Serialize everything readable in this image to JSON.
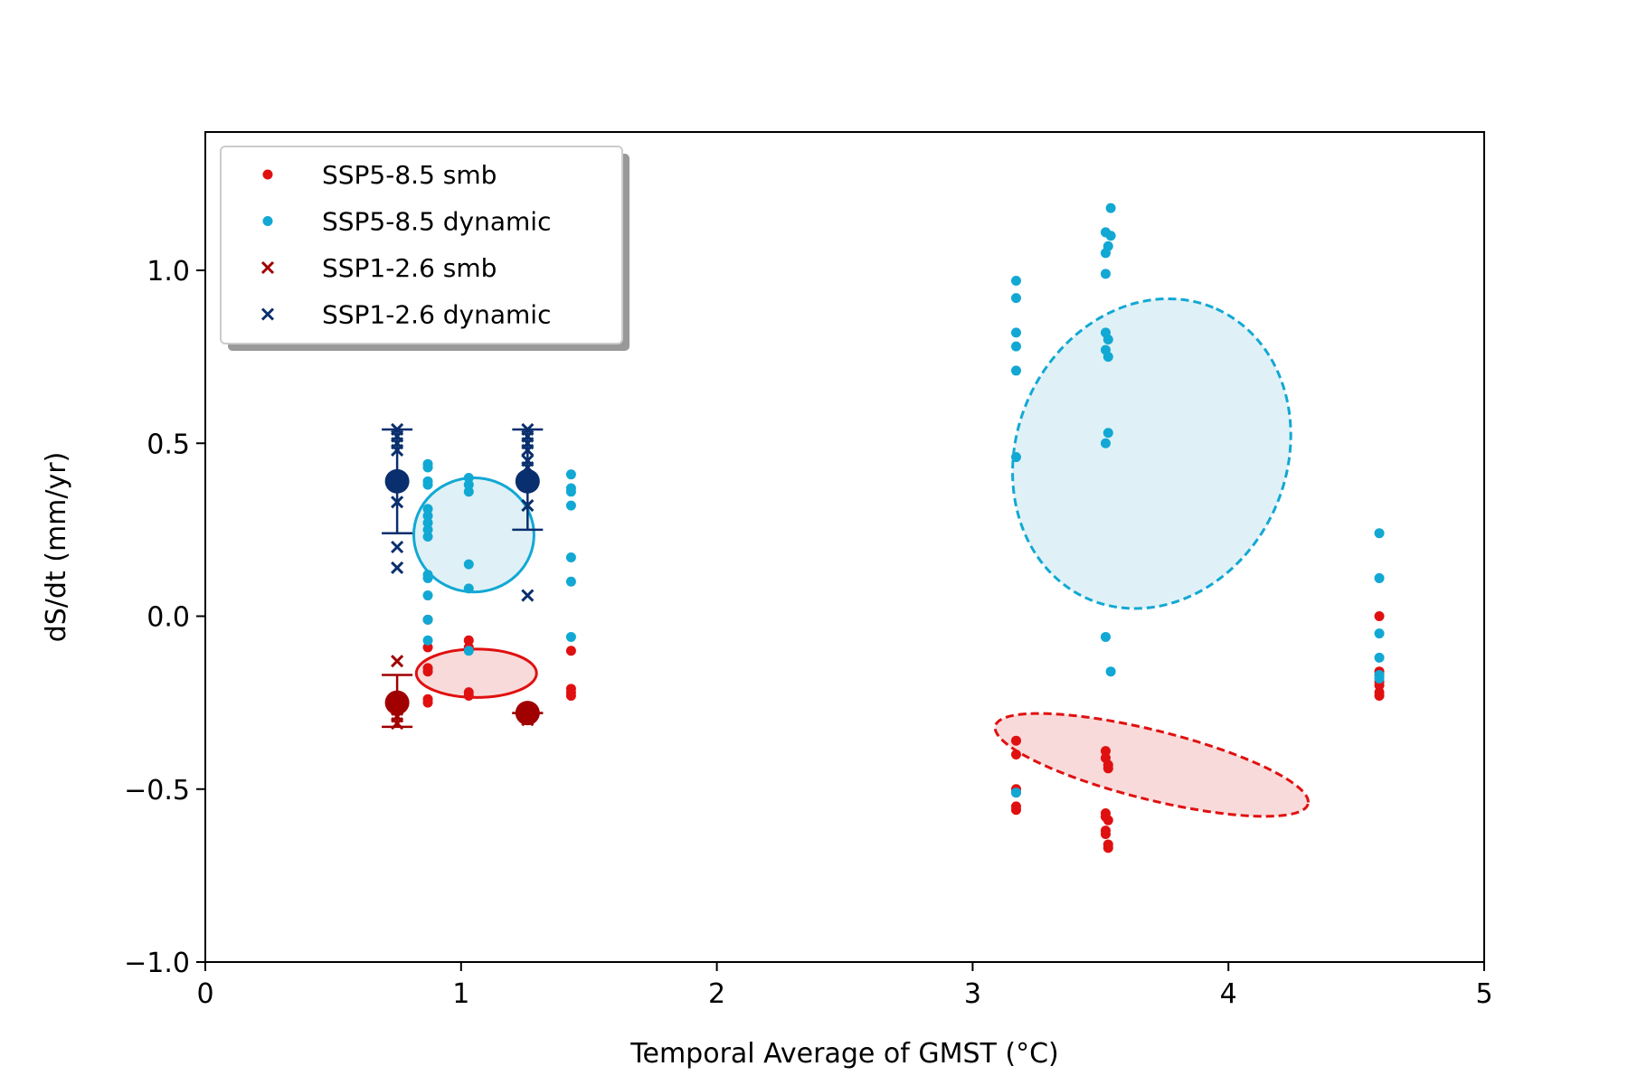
{
  "chart_data": {
    "type": "scatter",
    "title": "",
    "xlabel": "Temporal Average of GMST (°C)",
    "ylabel": "dS/dt (mm/yr)",
    "xlim": [
      0,
      5
    ],
    "ylim": [
      -1.0,
      1.4
    ],
    "xticks": [
      0,
      1,
      2,
      3,
      4,
      5
    ],
    "xtick_labels": [
      "0",
      "1",
      "2",
      "3",
      "4",
      "5"
    ],
    "yticks": [
      -1.0,
      -0.5,
      0.0,
      0.5,
      1.0
    ],
    "ytick_labels": [
      "−1.0",
      "−0.5",
      "0.0",
      "0.5",
      "1.0"
    ],
    "grid": false,
    "legend_position": "top-left",
    "series": [
      {
        "name": "SSP5-8.5 smb",
        "marker": "dot",
        "color": "#e01010",
        "points": [
          [
            0.87,
            -0.01
          ],
          [
            0.87,
            -0.09
          ],
          [
            0.87,
            -0.15
          ],
          [
            0.87,
            -0.16
          ],
          [
            0.87,
            -0.24
          ],
          [
            0.87,
            -0.25
          ],
          [
            1.03,
            -0.07
          ],
          [
            1.03,
            -0.09
          ],
          [
            1.03,
            -0.22
          ],
          [
            1.03,
            -0.23
          ],
          [
            1.43,
            -0.1
          ],
          [
            1.43,
            -0.21
          ],
          [
            1.43,
            -0.22
          ],
          [
            1.43,
            -0.23
          ],
          [
            3.17,
            -0.36
          ],
          [
            3.17,
            -0.4
          ],
          [
            3.17,
            -0.5
          ],
          [
            3.17,
            -0.51
          ],
          [
            3.17,
            -0.55
          ],
          [
            3.17,
            -0.56
          ],
          [
            3.52,
            -0.39
          ],
          [
            3.52,
            -0.41
          ],
          [
            3.53,
            -0.43
          ],
          [
            3.53,
            -0.44
          ],
          [
            3.52,
            -0.57
          ],
          [
            3.52,
            -0.58
          ],
          [
            3.53,
            -0.59
          ],
          [
            3.52,
            -0.62
          ],
          [
            3.52,
            -0.63
          ],
          [
            3.53,
            -0.66
          ],
          [
            3.53,
            -0.67
          ],
          [
            4.59,
            0.0
          ],
          [
            4.59,
            -0.16
          ],
          [
            4.59,
            -0.17
          ],
          [
            4.59,
            -0.19
          ],
          [
            4.59,
            -0.2
          ],
          [
            4.59,
            -0.22
          ],
          [
            4.59,
            -0.23
          ]
        ]
      },
      {
        "name": "SSP5-8.5 dynamic",
        "marker": "dot",
        "color": "#12a8d4",
        "points": [
          [
            0.87,
            0.44
          ],
          [
            0.87,
            0.43
          ],
          [
            0.87,
            0.39
          ],
          [
            0.87,
            0.38
          ],
          [
            0.87,
            0.31
          ],
          [
            0.87,
            0.29
          ],
          [
            0.87,
            0.27
          ],
          [
            0.87,
            0.25
          ],
          [
            0.87,
            0.23
          ],
          [
            0.87,
            0.12
          ],
          [
            0.87,
            0.11
          ],
          [
            0.87,
            0.06
          ],
          [
            0.87,
            -0.01
          ],
          [
            0.87,
            -0.07
          ],
          [
            1.03,
            0.4
          ],
          [
            1.03,
            0.38
          ],
          [
            1.03,
            0.36
          ],
          [
            1.03,
            0.15
          ],
          [
            1.03,
            0.08
          ],
          [
            1.03,
            -0.1
          ],
          [
            1.43,
            0.41
          ],
          [
            1.43,
            0.37
          ],
          [
            1.43,
            0.36
          ],
          [
            1.43,
            0.32
          ],
          [
            1.43,
            0.17
          ],
          [
            1.43,
            0.1
          ],
          [
            1.43,
            -0.06
          ],
          [
            3.17,
            0.97
          ],
          [
            3.17,
            0.92
          ],
          [
            3.17,
            0.82
          ],
          [
            3.17,
            0.78
          ],
          [
            3.17,
            0.71
          ],
          [
            3.17,
            0.46
          ],
          [
            3.17,
            -0.51
          ],
          [
            3.54,
            1.18
          ],
          [
            3.52,
            1.11
          ],
          [
            3.54,
            1.1
          ],
          [
            3.53,
            1.07
          ],
          [
            3.52,
            1.05
          ],
          [
            3.52,
            0.99
          ],
          [
            3.52,
            0.82
          ],
          [
            3.53,
            0.8
          ],
          [
            3.52,
            0.77
          ],
          [
            3.53,
            0.75
          ],
          [
            3.53,
            0.53
          ],
          [
            3.52,
            0.5
          ],
          [
            3.52,
            -0.06
          ],
          [
            3.54,
            -0.16
          ],
          [
            4.59,
            0.24
          ],
          [
            4.59,
            0.11
          ],
          [
            4.59,
            -0.05
          ],
          [
            4.59,
            -0.12
          ],
          [
            4.59,
            -0.17
          ],
          [
            4.59,
            -0.18
          ]
        ]
      },
      {
        "name": "SSP1-2.6 smb",
        "marker": "x",
        "color": "#a00000",
        "points": [
          [
            0.75,
            -0.13
          ],
          [
            0.75,
            -0.25
          ],
          [
            0.75,
            -0.27
          ],
          [
            0.75,
            -0.29
          ],
          [
            0.75,
            -0.31
          ],
          [
            1.26,
            -0.27
          ],
          [
            1.26,
            -0.28
          ],
          [
            1.26,
            -0.29
          ],
          [
            1.26,
            -0.3
          ]
        ]
      },
      {
        "name": "SSP1-2.6 dynamic",
        "marker": "x",
        "color": "#0a2f6e",
        "points": [
          [
            0.75,
            0.54
          ],
          [
            0.75,
            0.52
          ],
          [
            0.75,
            0.5
          ],
          [
            0.75,
            0.48
          ],
          [
            0.75,
            0.4
          ],
          [
            0.75,
            0.33
          ],
          [
            0.75,
            0.2
          ],
          [
            0.75,
            0.14
          ],
          [
            1.26,
            0.54
          ],
          [
            1.26,
            0.52
          ],
          [
            1.26,
            0.5
          ],
          [
            1.26,
            0.48
          ],
          [
            1.26,
            0.45
          ],
          [
            1.26,
            0.43
          ],
          [
            1.26,
            0.32
          ],
          [
            1.26,
            0.06
          ]
        ]
      }
    ],
    "error_bars": [
      {
        "x": 0.75,
        "mean": 0.39,
        "low": 0.24,
        "high": 0.54,
        "color": "#0a2f6e"
      },
      {
        "x": 1.26,
        "mean": 0.39,
        "low": 0.25,
        "high": 0.54,
        "color": "#0a2f6e"
      },
      {
        "x": 0.75,
        "mean": -0.25,
        "low": -0.32,
        "high": -0.17,
        "color": "#a00000"
      },
      {
        "x": 1.26,
        "mean": -0.28,
        "low": -0.28,
        "high": -0.28,
        "color": "#a00000"
      }
    ],
    "ellipses": [
      {
        "cx": 1.05,
        "cy": 0.235,
        "rx": 0.235,
        "ry": 0.165,
        "angle": 0,
        "style": "solid",
        "stroke": "#12a8d4",
        "fill": "#dff1f7"
      },
      {
        "cx": 1.06,
        "cy": -0.165,
        "rx": 0.235,
        "ry": 0.07,
        "angle": 0,
        "style": "solid",
        "stroke": "#e01010",
        "fill": "#f9dada"
      },
      {
        "cx": 3.7,
        "cy": 0.47,
        "rx": 0.62,
        "ry": 0.39,
        "angle": -66,
        "style": "dashed",
        "stroke": "#12a8d4",
        "fill": "#dff1f7"
      },
      {
        "cx": 3.7,
        "cy": -0.43,
        "rx": 0.63,
        "ry": 0.1,
        "angle": 14,
        "style": "dashed",
        "stroke": "#e01010",
        "fill": "#f9dada"
      }
    ]
  }
}
